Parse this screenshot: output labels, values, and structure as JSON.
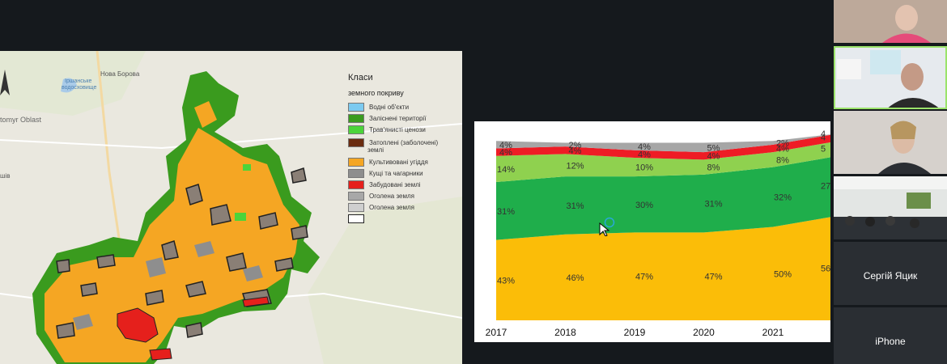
{
  "map": {
    "labels": {
      "town": "Нова Борова",
      "reservoir_line1": "Іршанське",
      "reservoir_line2": "водосховище",
      "oblast": "tomyr Oblast",
      "partial": "шів"
    },
    "legend": {
      "title_line1": "Класи",
      "title_line2": "земного покриву",
      "items": [
        {
          "label": "Водні об'єкти",
          "color": "#7ccaf0"
        },
        {
          "label": "Заліснені території",
          "color": "#3a9b1e"
        },
        {
          "label": "Трав'янисті ценози",
          "color": "#4cd43a"
        },
        {
          "label": "Затоплені (заболочені)",
          "label2": "землі",
          "color": "#6b2c10"
        },
        {
          "label": "Культивовані угіддя",
          "color": "#f5a623"
        },
        {
          "label": "Кущі та чагарники",
          "color": "#8e8e8e"
        },
        {
          "label": "Забудовані землі",
          "color": "#e5201c"
        },
        {
          "label": "Оголена земля",
          "color": "#a8a8a8"
        },
        {
          "label": "Оголена земля",
          "color": "#cfcfcf"
        },
        {
          "label": "",
          "color": "#ffffff"
        }
      ]
    }
  },
  "chart_data": {
    "type": "area",
    "categories": [
      "2017",
      "2018",
      "2019",
      "2020",
      "2021"
    ],
    "series": [
      {
        "values": [
          43,
          46,
          47,
          47,
          50
        ],
        "color": "#fbbd08"
      },
      {
        "values": [
          31,
          31,
          30,
          31,
          32
        ],
        "color": "#1fae4b"
      },
      {
        "values": [
          14,
          12,
          10,
          8,
          8
        ],
        "color": "#8fd14f"
      },
      {
        "values": [
          4,
          4,
          4,
          4,
          4
        ],
        "color": "#ee1c25"
      },
      {
        "values": [
          4,
          2,
          4,
          5,
          2
        ],
        "color": "#a6a6a6"
      }
    ],
    "partial_labels": [
      "56",
      "27",
      "5",
      "4",
      "4"
    ],
    "ylim": [
      0,
      100
    ]
  },
  "participants": [
    {
      "name": ""
    },
    {
      "name": ""
    },
    {
      "name": ""
    },
    {
      "name": ""
    },
    {
      "name": "Сергій Яцик"
    },
    {
      "name": "iPhone"
    }
  ]
}
